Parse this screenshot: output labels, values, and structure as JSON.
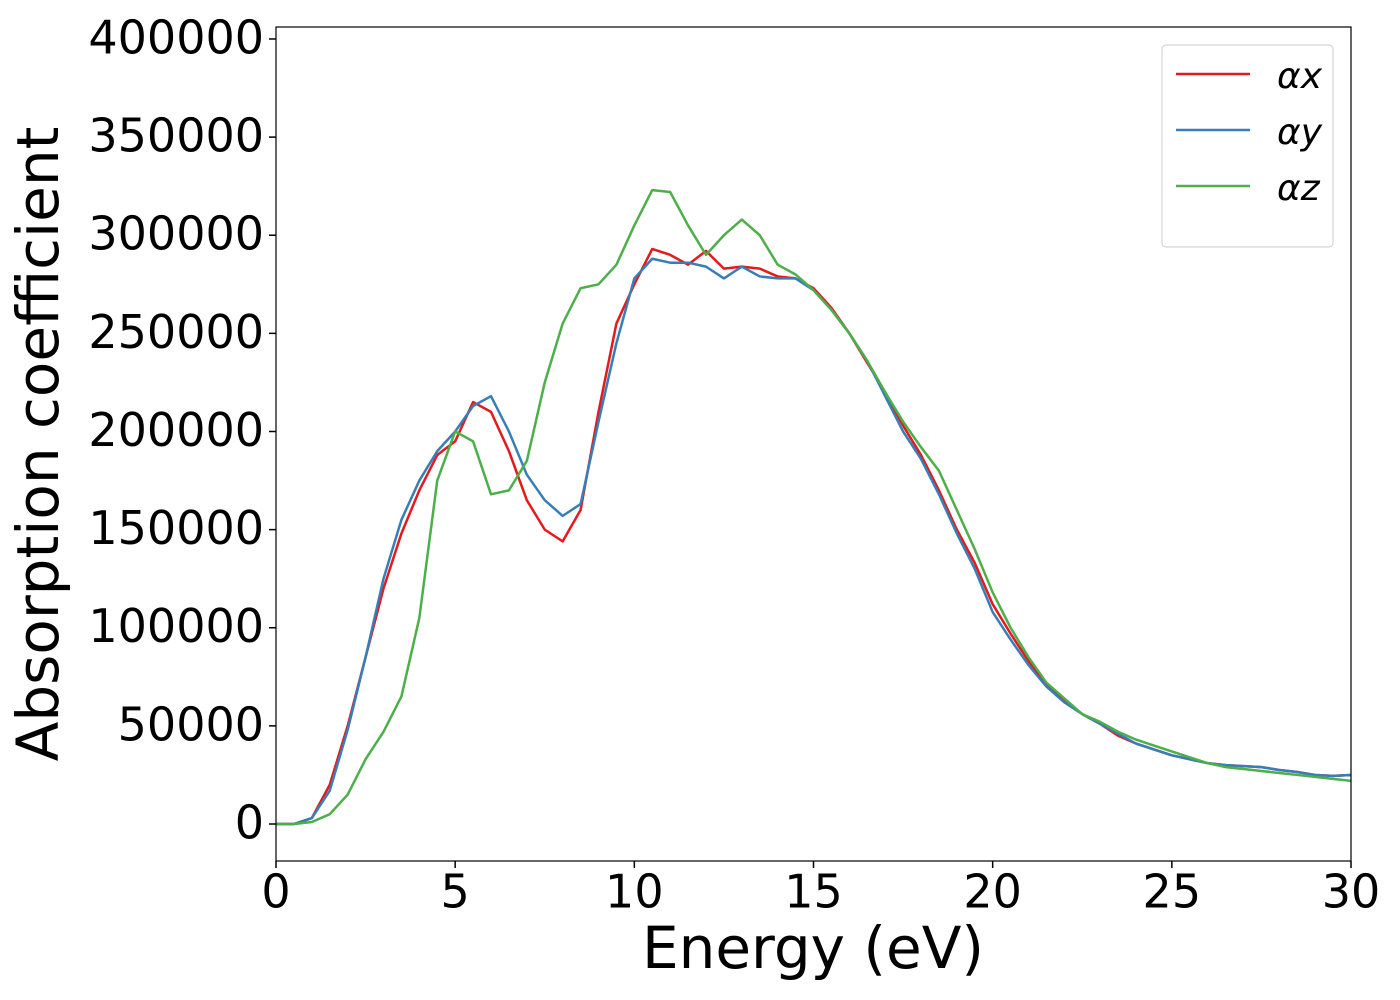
{
  "chart_data": {
    "type": "line",
    "xlabel": "Energy (eV)",
    "ylabel": "Absorption coefficient",
    "x": [
      0,
      0.5,
      1,
      1.5,
      2,
      2.5,
      3,
      3.5,
      4,
      4.5,
      5,
      5.5,
      6,
      6.5,
      7,
      7.5,
      8,
      8.5,
      9,
      9.5,
      10,
      10.5,
      11,
      11.5,
      12,
      12.5,
      13,
      13.5,
      14,
      14.5,
      15,
      15.5,
      16,
      16.5,
      17,
      17.5,
      18,
      18.5,
      19,
      19.5,
      20,
      20.5,
      21,
      21.5,
      22,
      22.5,
      23,
      23.5,
      24,
      24.5,
      25,
      25.5,
      26,
      26.5,
      27,
      27.5,
      28,
      28.5,
      29,
      29.5,
      30
    ],
    "series": [
      {
        "name": "αx",
        "color": "#e41a1c",
        "values": [
          0,
          0,
          3000,
          20000,
          50000,
          85000,
          120000,
          148000,
          170000,
          188000,
          195000,
          215000,
          210000,
          190000,
          165000,
          150000,
          144000,
          160000,
          210000,
          255000,
          275000,
          293000,
          290000,
          285000,
          292000,
          283000,
          284000,
          283000,
          279000,
          278000,
          273000,
          263000,
          250000,
          235000,
          220000,
          203000,
          188000,
          170000,
          150000,
          133000,
          112000,
          97000,
          83000,
          71000,
          63000,
          56000,
          51000,
          45000,
          41000,
          38000,
          35000,
          33000,
          31000,
          30000,
          29500,
          29000,
          27500,
          26500,
          25000,
          24500,
          25000
        ]
      },
      {
        "name": "αy",
        "color": "#377eb8",
        "values": [
          0,
          0,
          3000,
          17000,
          48000,
          85000,
          125000,
          155000,
          175000,
          190000,
          200000,
          213000,
          218000,
          200000,
          178000,
          165000,
          157000,
          163000,
          205000,
          245000,
          278000,
          288000,
          286000,
          286000,
          284000,
          278000,
          284000,
          279000,
          278000,
          278000,
          272000,
          262000,
          250000,
          236000,
          218000,
          200000,
          186000,
          168000,
          148000,
          130000,
          108000,
          94000,
          81000,
          70000,
          62000,
          56000,
          51000,
          46000,
          41000,
          38000,
          35000,
          33000,
          31000,
          30000,
          29500,
          29000,
          27500,
          26500,
          25000,
          24500,
          25000
        ]
      },
      {
        "name": "αz",
        "color": "#4daf4a",
        "values": [
          0,
          0,
          1000,
          5000,
          15000,
          33000,
          47000,
          65000,
          105000,
          175000,
          200000,
          195000,
          168000,
          170000,
          185000,
          225000,
          255000,
          273000,
          275000,
          285000,
          305000,
          323000,
          322000,
          305000,
          290000,
          300000,
          308000,
          300000,
          285000,
          280000,
          272000,
          262000,
          250000,
          236000,
          220000,
          205000,
          192000,
          180000,
          160000,
          140000,
          118000,
          100000,
          85000,
          72000,
          64000,
          56000,
          52000,
          47000,
          43000,
          40000,
          37000,
          34000,
          31000,
          29000,
          28000,
          27000,
          26000,
          25000,
          24000,
          23000,
          22000
        ]
      }
    ],
    "xlim": [
      0,
      30
    ],
    "xticks": [
      0,
      5,
      10,
      15,
      20,
      25,
      30
    ],
    "ylim": [
      -18850,
      406100
    ],
    "yticks": [
      0,
      50000,
      100000,
      150000,
      200000,
      250000,
      300000,
      350000,
      400000
    ],
    "legend": "upper right"
  }
}
